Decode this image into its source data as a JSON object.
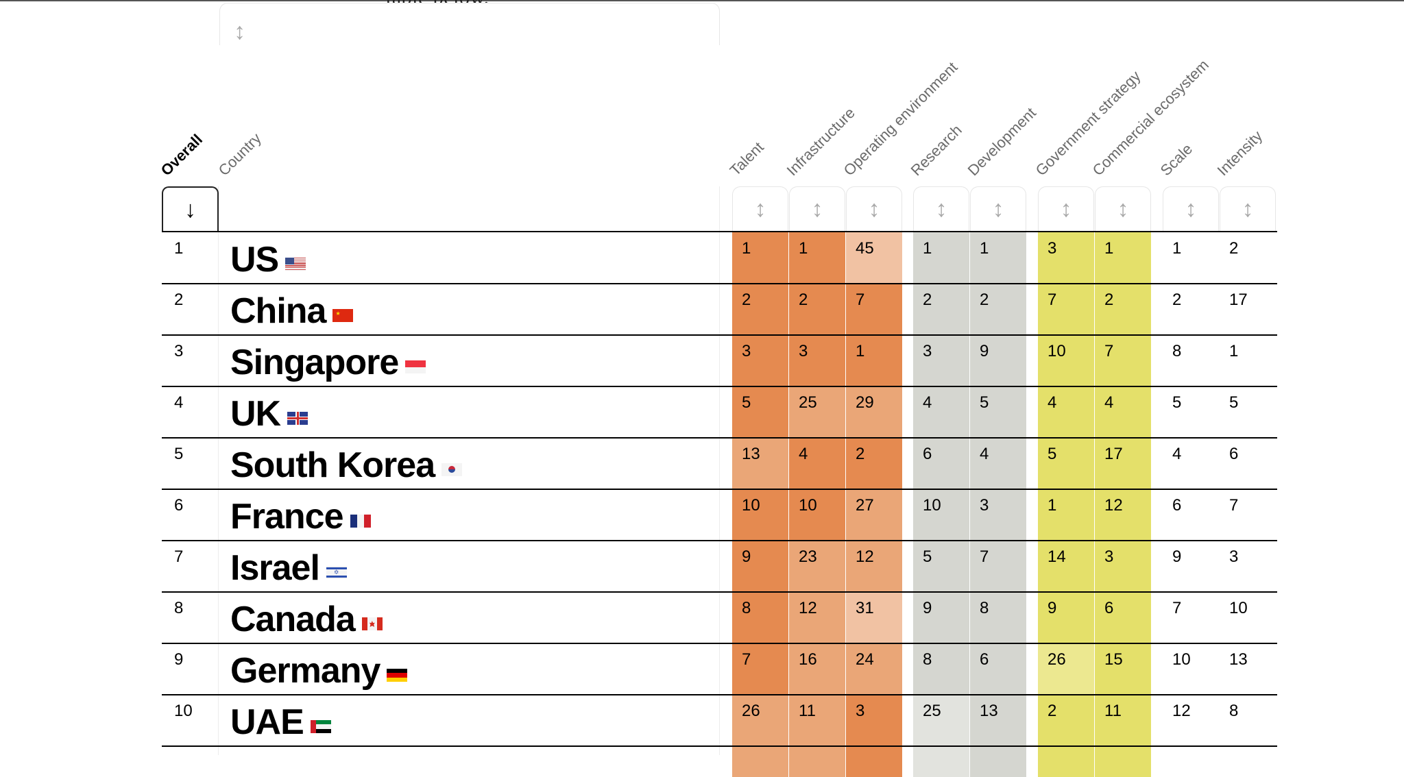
{
  "intro_text": "table below.",
  "columns": [
    {
      "key": "overall",
      "label": "Overall"
    },
    {
      "key": "country",
      "label": "Country"
    },
    {
      "key": "talent",
      "label": "Talent"
    },
    {
      "key": "infrastructure",
      "label": "Infrastructure"
    },
    {
      "key": "operating",
      "label": "Operating environment"
    },
    {
      "key": "research",
      "label": "Research"
    },
    {
      "key": "development",
      "label": "Development"
    },
    {
      "key": "government",
      "label": "Government strategy"
    },
    {
      "key": "commercial",
      "label": "Commercial ecosystem"
    },
    {
      "key": "scale",
      "label": "Scale"
    },
    {
      "key": "intensity",
      "label": "Intensity"
    }
  ],
  "sort_icons": {
    "active": "↓",
    "inactive": "↕"
  },
  "colors": {
    "orange_dark": "#e58a50",
    "orange_mid": "#eaa677",
    "orange_light": "#f1c2a3",
    "gray": "#d5d6d0",
    "gray_light": "#e2e3de",
    "yellow": "#e4e06a",
    "yellow_light": "#ece890"
  },
  "rows": [
    {
      "rank": "1",
      "country": "US",
      "flag": "us-flag",
      "values": [
        "1",
        "1",
        "45",
        "1",
        "1",
        "3",
        "1",
        "1",
        "2"
      ]
    },
    {
      "rank": "2",
      "country": "China",
      "flag": "china-flag",
      "values": [
        "2",
        "2",
        "7",
        "2",
        "2",
        "7",
        "2",
        "2",
        "17"
      ]
    },
    {
      "rank": "3",
      "country": "Singapore",
      "flag": "singapore-flag",
      "values": [
        "3",
        "3",
        "1",
        "3",
        "9",
        "10",
        "7",
        "8",
        "1"
      ]
    },
    {
      "rank": "4",
      "country": "UK",
      "flag": "uk-flag",
      "values": [
        "5",
        "25",
        "29",
        "4",
        "5",
        "4",
        "4",
        "5",
        "5"
      ]
    },
    {
      "rank": "5",
      "country": "South Korea",
      "flag": "south-korea-flag",
      "values": [
        "13",
        "4",
        "2",
        "6",
        "4",
        "5",
        "17",
        "4",
        "6"
      ]
    },
    {
      "rank": "6",
      "country": "France",
      "flag": "france-flag",
      "values": [
        "10",
        "10",
        "27",
        "10",
        "3",
        "1",
        "12",
        "6",
        "7"
      ]
    },
    {
      "rank": "7",
      "country": "Israel",
      "flag": "israel-flag",
      "values": [
        "9",
        "23",
        "12",
        "5",
        "7",
        "14",
        "3",
        "9",
        "3"
      ]
    },
    {
      "rank": "8",
      "country": "Canada",
      "flag": "canada-flag",
      "values": [
        "8",
        "12",
        "31",
        "9",
        "8",
        "9",
        "6",
        "7",
        "10"
      ]
    },
    {
      "rank": "9",
      "country": "Germany",
      "flag": "germany-flag",
      "values": [
        "7",
        "16",
        "24",
        "8",
        "6",
        "26",
        "15",
        "10",
        "13"
      ]
    },
    {
      "rank": "10",
      "country": "UAE",
      "flag": "uae-flag",
      "values": [
        "26",
        "11",
        "3",
        "25",
        "13",
        "2",
        "11",
        "12",
        "8"
      ]
    }
  ]
}
